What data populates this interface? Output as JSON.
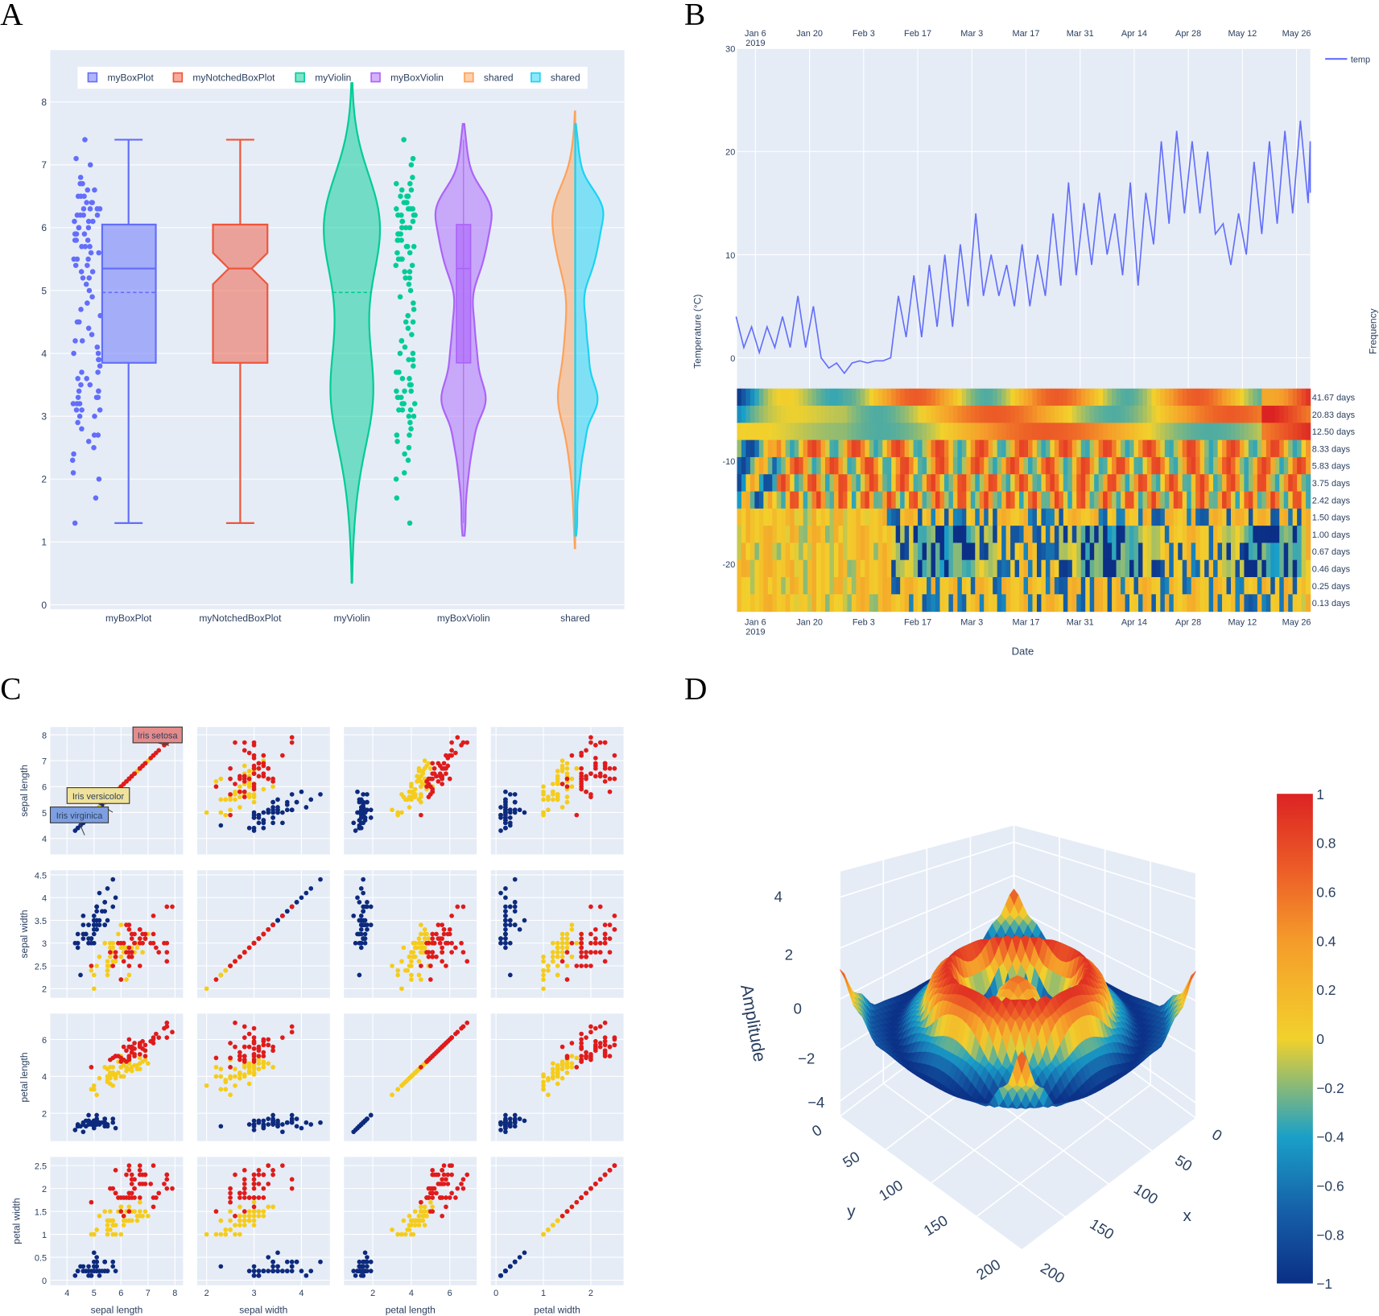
{
  "panel_letters": [
    "A",
    "B",
    "C",
    "D"
  ],
  "colorscale": [
    [
      0,
      "#0b2f86"
    ],
    [
      0.15,
      "#1660a8"
    ],
    [
      0.3,
      "#1aa0c8"
    ],
    [
      0.5,
      "#f2d12c"
    ],
    [
      0.7,
      "#f59b2a"
    ],
    [
      0.85,
      "#ec5b27"
    ],
    [
      1,
      "#dc2323"
    ]
  ],
  "chart_data": [
    {
      "panel": "A",
      "type": "box",
      "ylim": [
        0,
        8.4
      ],
      "y_ticks": [
        0,
        1,
        2,
        3,
        4,
        5,
        6,
        7,
        8
      ],
      "categories": [
        "myBoxPlot",
        "myNotchedBoxPlot",
        "myViolin",
        "myBoxViolin",
        "shared"
      ],
      "legend": [
        {
          "name": "myBoxPlot",
          "color": "#636efa"
        },
        {
          "name": "myNotchedBoxPlot",
          "color": "#ef553b"
        },
        {
          "name": "myViolin",
          "color": "#00cc96"
        },
        {
          "name": "myBoxViolin",
          "color": "#ab63fa"
        },
        {
          "name": "shared",
          "color": "#ffa15a"
        },
        {
          "name": "shared",
          "color": "#19d3f3"
        }
      ],
      "box_stats": {
        "lowerfence": 1.3,
        "q1": 3.85,
        "median": 5.35,
        "q3": 6.05,
        "upperfence": 7.4,
        "mean": 4.97
      },
      "violin_spans": {
        "myViolin": [
          0.35,
          8.3
        ],
        "myBoxViolin": [
          1.1,
          7.65
        ],
        "shared_left": [
          0.9,
          7.85
        ],
        "shared_right": [
          1.1,
          7.65
        ]
      },
      "points": [
        1.3,
        1.7,
        2.0,
        2.1,
        2.3,
        2.4,
        2.5,
        2.6,
        2.7,
        2.7,
        2.8,
        2.9,
        3.0,
        3.0,
        3.1,
        3.1,
        3.1,
        3.2,
        3.2,
        3.2,
        3.3,
        3.3,
        3.3,
        3.4,
        3.4,
        3.4,
        3.5,
        3.5,
        3.6,
        3.6,
        3.7,
        3.7,
        3.8,
        3.9,
        3.9,
        4.0,
        4.0,
        4.1,
        4.2,
        4.2,
        4.3,
        4.4,
        4.5,
        4.5,
        4.6,
        4.7,
        4.8,
        4.9,
        5.0,
        5.1,
        5.2,
        5.2,
        5.3,
        5.3,
        5.4,
        5.4,
        5.5,
        5.5,
        5.5,
        5.6,
        5.6,
        5.7,
        5.7,
        5.7,
        5.8,
        5.8,
        5.8,
        5.9,
        5.9,
        5.9,
        6.0,
        6.0,
        6.0,
        6.1,
        6.1,
        6.1,
        6.2,
        6.2,
        6.2,
        6.2,
        6.3,
        6.3,
        6.3,
        6.3,
        6.4,
        6.4,
        6.4,
        6.5,
        6.5,
        6.5,
        6.6,
        6.6,
        6.7,
        6.7,
        6.8,
        7.0,
        7.1,
        7.4
      ]
    },
    {
      "panel": "B",
      "type": "line+heatmap",
      "ylabel": "Temperature (°C)",
      "y2label": "Frequency",
      "xlabel": "Date",
      "y_ticks": [
        -20,
        -10,
        0,
        10,
        20,
        30
      ],
      "x_ticks": [
        {
          "date": "2019-01-06",
          "label": "Jan 6",
          "sub": "2019"
        },
        {
          "date": "2019-01-20",
          "label": "Jan 20"
        },
        {
          "date": "2019-02-03",
          "label": "Feb 3"
        },
        {
          "date": "2019-02-17",
          "label": "Feb 17"
        },
        {
          "date": "2019-03-03",
          "label": "Mar 3"
        },
        {
          "date": "2019-03-17",
          "label": "Mar 17"
        },
        {
          "date": "2019-03-31",
          "label": "Mar 31"
        },
        {
          "date": "2019-04-14",
          "label": "Apr 14"
        },
        {
          "date": "2019-04-28",
          "label": "Apr 28"
        },
        {
          "date": "2019-05-12",
          "label": "May 12"
        },
        {
          "date": "2019-05-26",
          "label": "May 26"
        }
      ],
      "series": [
        {
          "name": "temp",
          "color": "#636efa",
          "x": [
            "2019-01-01",
            "2019-01-03",
            "2019-01-05",
            "2019-01-07",
            "2019-01-09",
            "2019-01-11",
            "2019-01-13",
            "2019-01-15",
            "2019-01-17",
            "2019-01-19",
            "2019-01-21",
            "2019-01-23",
            "2019-01-25",
            "2019-01-27",
            "2019-01-29",
            "2019-01-31",
            "2019-02-02",
            "2019-02-04",
            "2019-02-06",
            "2019-02-08",
            "2019-02-10",
            "2019-02-12",
            "2019-02-14",
            "2019-02-16",
            "2019-02-18",
            "2019-02-20",
            "2019-02-22",
            "2019-02-24",
            "2019-02-26",
            "2019-02-28",
            "2019-03-02",
            "2019-03-04",
            "2019-03-06",
            "2019-03-08",
            "2019-03-10",
            "2019-03-12",
            "2019-03-14",
            "2019-03-16",
            "2019-03-18",
            "2019-03-20",
            "2019-03-22",
            "2019-03-24",
            "2019-03-26",
            "2019-03-28",
            "2019-03-30",
            "2019-04-01",
            "2019-04-03",
            "2019-04-05",
            "2019-04-07",
            "2019-04-09",
            "2019-04-11",
            "2019-04-13",
            "2019-04-15",
            "2019-04-17",
            "2019-04-19",
            "2019-04-21",
            "2019-04-23",
            "2019-04-25",
            "2019-04-27",
            "2019-04-29",
            "2019-05-01",
            "2019-05-03",
            "2019-05-05",
            "2019-05-07",
            "2019-05-09",
            "2019-05-11",
            "2019-05-13",
            "2019-05-15",
            "2019-05-17",
            "2019-05-19",
            "2019-05-21",
            "2019-05-23",
            "2019-05-25",
            "2019-05-27",
            "2019-05-29",
            "2019-05-31",
            "2019-06-02"
          ],
          "y": [
            4,
            1,
            3,
            0.5,
            3,
            1,
            4,
            1,
            6,
            1,
            5,
            0,
            -1,
            -0.5,
            -1.5,
            -0.5,
            -0.3,
            -0.5,
            -0.3,
            -0.3,
            0,
            6,
            2,
            8,
            2,
            9,
            3,
            10,
            3,
            11,
            5,
            14,
            6,
            10,
            6,
            9,
            5,
            11,
            5,
            10,
            6,
            14,
            7,
            17,
            8,
            15,
            9,
            16,
            10,
            14,
            8,
            17,
            7,
            16,
            11,
            21,
            13,
            22,
            14,
            21,
            14,
            20,
            12,
            13,
            9,
            14,
            10,
            19,
            12,
            21,
            13,
            22,
            14,
            23,
            15,
            21,
            16
          ]
        }
      ],
      "heatmap_frequency_labels": [
        "41.67 days",
        "20.83 days",
        "12.50 days",
        "8.33 days",
        "5.83 days",
        "3.75 days",
        "2.42 days",
        "1.50 days",
        "1.00 days",
        "0.67 days",
        "0.46 days",
        "0.25 days",
        "0.13 days"
      ]
    },
    {
      "panel": "C",
      "type": "scatter-matrix",
      "dimensions": [
        "sepal length",
        "sepal width",
        "petal length",
        "petal width"
      ],
      "axis_ranges": [
        [
          3.38,
          8.3
        ],
        [
          1.8,
          4.6
        ],
        [
          0.5,
          7.4
        ],
        [
          -0.11,
          2.69
        ]
      ],
      "y_ticks": [
        [
          "4",
          "5",
          "6",
          "7",
          "8"
        ],
        [
          "2",
          "2.5",
          "3",
          "3.5",
          "4",
          "4.5"
        ],
        [
          "2",
          "4",
          "6"
        ],
        [
          "0",
          "0.5",
          "1",
          "1.5",
          "2",
          "2.5"
        ]
      ],
      "x_ticks": [
        [
          "4",
          "5",
          "6",
          "7",
          "8"
        ],
        [
          "2",
          "3",
          "4"
        ],
        [
          "2",
          "4",
          "6"
        ],
        [
          "0",
          "1",
          "2"
        ]
      ],
      "annotations": [
        {
          "text": "Iris setosa",
          "bg": "#e48b8b"
        },
        {
          "text": "Iris versicolor",
          "bg": "#f0e29a"
        },
        {
          "text": "Iris virginica",
          "bg": "#7d9ee0"
        }
      ],
      "species": [
        {
          "name": "setosa",
          "color": "#0d2a7d",
          "rows": [
            "5.1 3.5 1.4 0.2",
            "4.9 3.0 1.4 0.2",
            "4.7 3.2 1.3 0.2",
            "4.6 3.1 1.5 0.2",
            "5.0 3.6 1.4 0.2",
            "5.4 3.9 1.7 0.4",
            "4.6 3.4 1.4 0.3",
            "5.0 3.4 1.5 0.2",
            "4.4 2.9 1.4 0.2",
            "4.9 3.1 1.5 0.1",
            "5.4 3.7 1.5 0.2",
            "4.8 3.4 1.6 0.2",
            "4.8 3.0 1.4 0.1",
            "4.3 3.0 1.1 0.1",
            "5.8 4.0 1.2 0.2",
            "5.7 4.4 1.5 0.4",
            "5.4 3.9 1.3 0.4",
            "5.1 3.5 1.4 0.3",
            "5.7 3.8 1.7 0.3",
            "5.1 3.8 1.5 0.3",
            "5.4 3.4 1.7 0.2",
            "5.1 3.7 1.5 0.4",
            "4.6 3.6 1.0 0.2",
            "5.1 3.3 1.7 0.5",
            "4.8 3.4 1.9 0.2",
            "5.0 3.0 1.6 0.2",
            "5.0 3.4 1.6 0.4",
            "5.2 3.5 1.5 0.2",
            "5.2 3.4 1.4 0.2",
            "4.7 3.2 1.6 0.2",
            "4.8 3.1 1.6 0.2",
            "5.4 3.4 1.5 0.4",
            "5.2 4.1 1.5 0.1",
            "5.5 4.2 1.4 0.2",
            "4.9 3.1 1.5 0.1",
            "5.0 3.2 1.2 0.2",
            "5.5 3.5 1.3 0.2",
            "4.9 3.1 1.5 0.1",
            "4.4 3.0 1.3 0.2",
            "5.1 3.4 1.5 0.2",
            "5.0 3.5 1.3 0.3",
            "4.5 2.3 1.3 0.3",
            "4.4 3.2 1.3 0.2",
            "5.0 3.5 1.6 0.6",
            "5.1 3.8 1.9 0.4",
            "4.8 3.0 1.4 0.3",
            "5.1 3.8 1.6 0.2",
            "4.6 3.2 1.4 0.2",
            "5.3 3.7 1.5 0.2",
            "5.0 3.3 1.4 0.2"
          ]
        },
        {
          "name": "versicolor",
          "color": "#f5cc1c",
          "rows": [
            "7.0 3.2 4.7 1.4",
            "6.4 3.2 4.5 1.5",
            "6.9 3.1 4.9 1.5",
            "5.5 2.3 4.0 1.3",
            "6.5 2.8 4.6 1.5",
            "5.7 2.8 4.5 1.3",
            "6.3 3.3 4.7 1.6",
            "4.9 2.4 3.3 1.0",
            "6.6 2.9 4.6 1.3",
            "5.2 2.7 3.9 1.4",
            "5.0 2.0 3.5 1.0",
            "5.9 3.0 4.2 1.5",
            "6.0 2.2 4.0 1.0",
            "6.1 2.9 4.7 1.4",
            "5.6 2.9 3.6 1.3",
            "6.7 3.1 4.4 1.4",
            "5.6 3.0 4.5 1.5",
            "5.8 2.7 4.1 1.0",
            "6.2 2.2 4.5 1.5",
            "5.6 2.5 3.9 1.1",
            "5.9 3.2 4.8 1.8",
            "6.1 2.8 4.0 1.3",
            "6.3 2.5 4.9 1.5",
            "6.1 2.8 4.7 1.2",
            "6.4 2.9 4.3 1.3",
            "6.6 3.0 4.4 1.4",
            "6.8 2.8 4.8 1.4",
            "6.7 3.0 5.0 1.7",
            "6.0 2.9 4.5 1.5",
            "5.7 2.6 3.5 1.0",
            "5.5 2.4 3.8 1.1",
            "5.5 2.4 3.7 1.0",
            "5.8 2.7 3.9 1.2",
            "6.0 2.7 5.1 1.6",
            "5.4 3.0 4.5 1.5",
            "6.0 3.4 4.5 1.6",
            "6.7 3.1 4.7 1.5",
            "6.3 2.3 4.4 1.3",
            "5.6 3.0 4.1 1.3",
            "5.5 2.5 4.0 1.3",
            "5.5 2.6 4.4 1.2",
            "6.1 3.0 4.6 1.4",
            "5.8 2.6 4.0 1.2",
            "5.0 2.3 3.3 1.0",
            "5.6 2.7 4.2 1.3",
            "5.7 3.0 4.2 1.2",
            "5.7 2.9 4.2 1.3",
            "6.2 2.9 4.3 1.3",
            "5.1 2.5 3.0 1.1",
            "5.7 2.8 4.1 1.3"
          ]
        },
        {
          "name": "virginica",
          "color": "#e01b1b",
          "rows": [
            "6.3 3.3 6.0 2.5",
            "5.8 2.7 5.1 1.9",
            "7.1 3.0 5.9 2.1",
            "6.3 2.9 5.6 1.8",
            "6.5 3.0 5.8 2.2",
            "7.6 3.0 6.6 2.1",
            "4.9 2.5 4.5 1.7",
            "7.3 2.9 6.3 1.8",
            "6.7 2.5 5.8 1.8",
            "7.2 3.6 6.1 2.5",
            "6.5 3.2 5.1 2.0",
            "6.4 2.7 5.3 1.9",
            "6.8 3.0 5.5 2.1",
            "5.7 2.5 5.0 2.0",
            "5.8 2.8 5.1 2.4",
            "6.4 3.2 5.3 2.3",
            "6.5 3.0 5.5 1.8",
            "7.7 3.8 6.7 2.2",
            "7.7 2.6 6.9 2.3",
            "6.0 2.2 5.0 1.5",
            "6.9 3.2 5.7 2.3",
            "5.6 2.8 4.9 2.0",
            "7.7 2.8 6.7 2.0",
            "6.3 2.7 4.9 1.8",
            "6.7 3.3 5.7 2.1",
            "7.2 3.2 6.0 1.8",
            "6.2 2.8 4.8 1.8",
            "6.1 3.0 4.9 1.8",
            "6.4 2.8 5.6 2.1",
            "7.2 3.0 5.8 1.6",
            "7.4 2.8 6.1 1.9",
            "7.9 3.8 6.4 2.0",
            "6.4 2.8 5.6 2.2",
            "6.3 2.8 5.1 1.5",
            "6.1 2.6 5.6 1.4",
            "7.7 3.0 6.1 2.3",
            "6.3 3.4 5.6 2.4",
            "6.4 3.1 5.5 1.8",
            "6.0 3.0 4.8 1.8",
            "6.9 3.1 5.4 2.1",
            "6.7 3.1 5.6 2.4",
            "6.9 3.1 5.1 2.3",
            "5.8 2.7 5.1 1.9",
            "6.8 3.2 5.9 2.3",
            "6.7 3.3 5.7 2.5",
            "6.7 3.0 5.2 2.3",
            "6.3 2.5 5.0 1.9",
            "6.5 3.0 5.2 2.0",
            "6.2 3.4 5.4 2.3",
            "5.9 3.0 5.1 1.8"
          ]
        }
      ]
    },
    {
      "panel": "D",
      "type": "surface",
      "zlabel": "Amplitude",
      "xlabel": "x",
      "ylabel": "y",
      "x_ticks": [
        "0",
        "50",
        "100",
        "150",
        "200"
      ],
      "y_ticks": [
        "0",
        "50",
        "100",
        "150",
        "200"
      ],
      "z_ticks": [
        "4",
        "2",
        "0",
        "−2",
        "−4"
      ],
      "zlim": [
        -4.6,
        5
      ],
      "colorbar_ticks": [
        "1",
        "0.8",
        "0.6",
        "0.4",
        "0.2",
        "0",
        "−0.2",
        "−0.4",
        "−0.6",
        "−0.8",
        "−1"
      ],
      "colorbar_range": [
        -1,
        1
      ],
      "radial_profile": {
        "r": [
          0,
          6,
          14,
          24,
          36,
          46,
          55,
          66,
          80,
          98,
          115,
          128,
          142
        ],
        "amplitude": [
          0.55,
          0.62,
          0.3,
          -0.6,
          -0.9,
          0.2,
          1.0,
          0.6,
          -0.4,
          -1.0,
          -0.8,
          -0.1,
          0.9
        ]
      }
    }
  ]
}
